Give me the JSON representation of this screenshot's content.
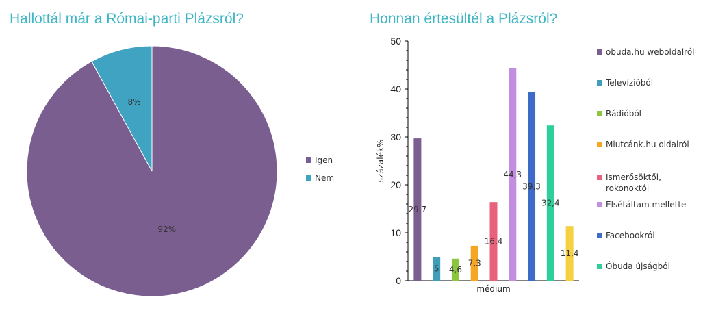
{
  "chart_data": [
    {
      "type": "pie",
      "title": "Hallottál már a Római-parti Plázsról?",
      "categories": [
        "Igen",
        "Nem"
      ],
      "values": [
        92,
        8
      ],
      "data_labels": [
        "92%",
        "8%"
      ],
      "colors": [
        "#7b5e90",
        "#41a3c2"
      ],
      "legend_position": "right"
    },
    {
      "type": "bar",
      "title": "Honnan értesültél a Plázsról?",
      "xlabel": "médium",
      "ylabel": "százalék%",
      "ylim": [
        0,
        50
      ],
      "yticks": [
        "0",
        "10",
        "20",
        "30",
        "40",
        "50"
      ],
      "grid": false,
      "legend_position": "right",
      "series": [
        {
          "name": "obuda.hu weboldalról",
          "value": 29.7,
          "label": "29,7",
          "color": "#7b5e90"
        },
        {
          "name": "Televízióból",
          "value": 5,
          "label": "5",
          "color": "#3f9fb8"
        },
        {
          "name": "Rádióból",
          "value": 4.6,
          "label": "4,6",
          "color": "#8cc63f"
        },
        {
          "name": "Miutcánk.hu oldalról",
          "value": 7.3,
          "label": "7,3",
          "color": "#f5a623"
        },
        {
          "name": "Ismerősöktől, rokonoktól",
          "value": 16.4,
          "label": "16,4",
          "color": "#e8627c"
        },
        {
          "name": "Elsétáltam mellette",
          "value": 44.3,
          "label": "44,3",
          "color": "#c38ee0"
        },
        {
          "name": "Facebookról",
          "value": 39.3,
          "label": "39,3",
          "color": "#3e6bc8"
        },
        {
          "name": "Óbuda újságból",
          "value": 32.4,
          "label": "32,4",
          "color": "#2fcf9c"
        },
        {
          "name": "",
          "value": 11.4,
          "label": "11,4",
          "color": "#f5d142"
        }
      ]
    }
  ]
}
